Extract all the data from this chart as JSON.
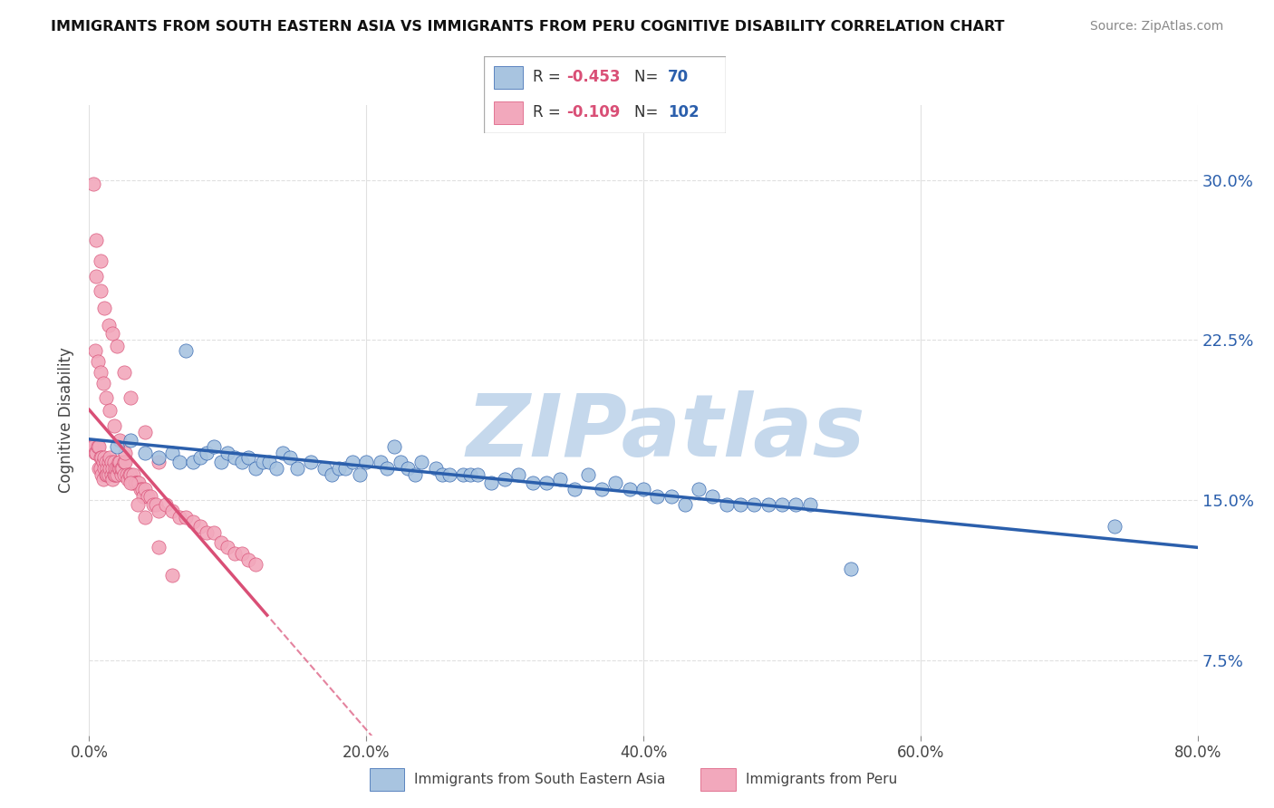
{
  "title": "IMMIGRANTS FROM SOUTH EASTERN ASIA VS IMMIGRANTS FROM PERU COGNITIVE DISABILITY CORRELATION CHART",
  "source": "Source: ZipAtlas.com",
  "ylabel": "Cognitive Disability",
  "y_ticks": [
    0.075,
    0.15,
    0.225,
    0.3
  ],
  "y_tick_labels": [
    "7.5%",
    "15.0%",
    "22.5%",
    "30.0%"
  ],
  "xlim": [
    0.0,
    0.8
  ],
  "ylim": [
    0.04,
    0.335
  ],
  "blue_color": "#A8C4E0",
  "pink_color": "#F2A8BC",
  "trend_blue_color": "#2B5FAC",
  "trend_pink_color": "#D94F76",
  "watermark": "ZIPatlas",
  "watermark_color": "#C5D8EC",
  "background_color": "#FFFFFF",
  "grid_color": "#E0E0E0",
  "blue_scatter_x": [
    0.02,
    0.03,
    0.04,
    0.05,
    0.06,
    0.065,
    0.07,
    0.075,
    0.08,
    0.085,
    0.09,
    0.095,
    0.1,
    0.105,
    0.11,
    0.115,
    0.12,
    0.125,
    0.13,
    0.135,
    0.14,
    0.145,
    0.15,
    0.16,
    0.17,
    0.175,
    0.18,
    0.185,
    0.19,
    0.195,
    0.2,
    0.21,
    0.215,
    0.22,
    0.225,
    0.23,
    0.235,
    0.24,
    0.25,
    0.255,
    0.26,
    0.27,
    0.275,
    0.28,
    0.29,
    0.3,
    0.31,
    0.32,
    0.33,
    0.34,
    0.35,
    0.36,
    0.37,
    0.38,
    0.39,
    0.4,
    0.41,
    0.42,
    0.43,
    0.44,
    0.45,
    0.46,
    0.47,
    0.48,
    0.49,
    0.5,
    0.51,
    0.52,
    0.55,
    0.74
  ],
  "blue_scatter_y": [
    0.175,
    0.178,
    0.172,
    0.17,
    0.172,
    0.168,
    0.22,
    0.168,
    0.17,
    0.172,
    0.175,
    0.168,
    0.172,
    0.17,
    0.168,
    0.17,
    0.165,
    0.168,
    0.168,
    0.165,
    0.172,
    0.17,
    0.165,
    0.168,
    0.165,
    0.162,
    0.165,
    0.165,
    0.168,
    0.162,
    0.168,
    0.168,
    0.165,
    0.175,
    0.168,
    0.165,
    0.162,
    0.168,
    0.165,
    0.162,
    0.162,
    0.162,
    0.162,
    0.162,
    0.158,
    0.16,
    0.162,
    0.158,
    0.158,
    0.16,
    0.155,
    0.162,
    0.155,
    0.158,
    0.155,
    0.155,
    0.152,
    0.152,
    0.148,
    0.155,
    0.152,
    0.148,
    0.148,
    0.148,
    0.148,
    0.148,
    0.148,
    0.148,
    0.118,
    0.138
  ],
  "pink_scatter_x": [
    0.002,
    0.003,
    0.004,
    0.005,
    0.006,
    0.007,
    0.007,
    0.008,
    0.008,
    0.009,
    0.009,
    0.01,
    0.01,
    0.011,
    0.011,
    0.012,
    0.012,
    0.013,
    0.013,
    0.014,
    0.014,
    0.015,
    0.015,
    0.016,
    0.016,
    0.017,
    0.017,
    0.018,
    0.018,
    0.019,
    0.019,
    0.02,
    0.02,
    0.021,
    0.021,
    0.022,
    0.022,
    0.023,
    0.023,
    0.024,
    0.025,
    0.025,
    0.026,
    0.027,
    0.028,
    0.029,
    0.03,
    0.031,
    0.032,
    0.033,
    0.034,
    0.035,
    0.036,
    0.037,
    0.038,
    0.039,
    0.04,
    0.042,
    0.044,
    0.046,
    0.048,
    0.05,
    0.055,
    0.06,
    0.065,
    0.07,
    0.075,
    0.08,
    0.085,
    0.09,
    0.095,
    0.1,
    0.105,
    0.11,
    0.115,
    0.12,
    0.004,
    0.006,
    0.008,
    0.01,
    0.012,
    0.015,
    0.018,
    0.022,
    0.026,
    0.03,
    0.035,
    0.04,
    0.05,
    0.06,
    0.005,
    0.008,
    0.011,
    0.014,
    0.017,
    0.02,
    0.025,
    0.03,
    0.04,
    0.05,
    0.003,
    0.005,
    0.008
  ],
  "pink_scatter_y": [
    0.175,
    0.175,
    0.172,
    0.172,
    0.175,
    0.175,
    0.165,
    0.17,
    0.165,
    0.17,
    0.162,
    0.168,
    0.16,
    0.165,
    0.17,
    0.162,
    0.168,
    0.165,
    0.162,
    0.168,
    0.162,
    0.17,
    0.165,
    0.162,
    0.168,
    0.165,
    0.16,
    0.162,
    0.168,
    0.162,
    0.165,
    0.165,
    0.162,
    0.165,
    0.168,
    0.165,
    0.168,
    0.162,
    0.165,
    0.165,
    0.162,
    0.168,
    0.168,
    0.162,
    0.16,
    0.162,
    0.162,
    0.158,
    0.162,
    0.158,
    0.158,
    0.158,
    0.158,
    0.155,
    0.155,
    0.152,
    0.155,
    0.152,
    0.152,
    0.148,
    0.148,
    0.145,
    0.148,
    0.145,
    0.142,
    0.142,
    0.14,
    0.138,
    0.135,
    0.135,
    0.13,
    0.128,
    0.125,
    0.125,
    0.122,
    0.12,
    0.22,
    0.215,
    0.21,
    0.205,
    0.198,
    0.192,
    0.185,
    0.178,
    0.172,
    0.158,
    0.148,
    0.142,
    0.128,
    0.115,
    0.255,
    0.248,
    0.24,
    0.232,
    0.228,
    0.222,
    0.21,
    0.198,
    0.182,
    0.168,
    0.298,
    0.272,
    0.262
  ]
}
